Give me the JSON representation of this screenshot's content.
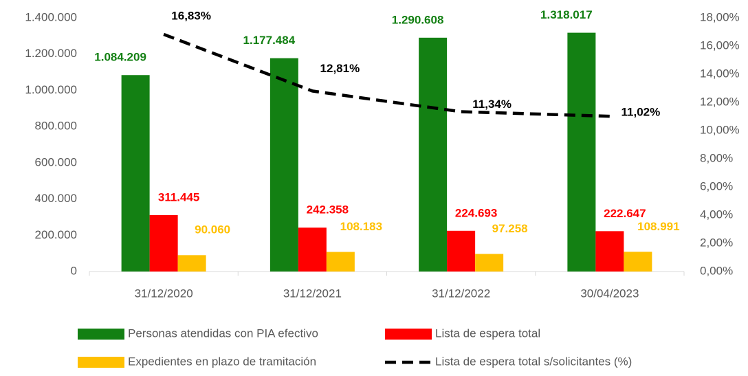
{
  "chart_data": {
    "type": "bar",
    "categories": [
      "31/12/2020",
      "31/12/2021",
      "31/12/2022",
      "30/04/2023"
    ],
    "series": [
      {
        "name": "Personas atendidas con PIA efectivo",
        "color": "#138013",
        "values": [
          1084209,
          1177484,
          1290608,
          1318017
        ],
        "value_labels": [
          "1.084.209",
          "1.177.484",
          "1.290.608",
          "1.318.017"
        ]
      },
      {
        "name": "Lista de espera total",
        "color": "#ff0000",
        "values": [
          311445,
          242358,
          224693,
          222647
        ],
        "value_labels": [
          "311.445",
          "242.358",
          "224.693",
          "222.647"
        ]
      },
      {
        "name": "Expedientes en plazo de tramitación",
        "color": "#ffc000",
        "values": [
          90060,
          108183,
          97258,
          108991
        ],
        "value_labels": [
          "90.060",
          "108.183",
          "97.258",
          "108.991"
        ]
      },
      {
        "name": "Lista de espera total s/solicitantes (%)",
        "type": "line",
        "axis": "y2",
        "color": "#000000",
        "values": [
          16.83,
          12.81,
          11.34,
          11.02
        ],
        "value_labels": [
          "16,83%",
          "12,81%",
          "11,34%",
          "11,02%"
        ]
      }
    ],
    "ylim": [
      0,
      1400000
    ],
    "yticks": [
      0,
      {
        "value": 200000,
        "label": "200.000"
      },
      {
        "value": 400000,
        "label": "400.000"
      },
      {
        "value": 600000,
        "label": "600.000"
      },
      {
        "value": 800000,
        "label": "800.000"
      },
      {
        "value": 1000000,
        "label": "1.000.000"
      },
      {
        "value": 1200000,
        "label": "1.200.000"
      },
      {
        "value": 1400000,
        "label": "1.400.000"
      }
    ],
    "y2lim": [
      0,
      18
    ],
    "y2ticks": [
      {
        "value": 0,
        "label": "0,00%"
      },
      {
        "value": 2,
        "label": "2,00%"
      },
      {
        "value": 4,
        "label": "4,00%"
      },
      {
        "value": 6,
        "label": "6,00%"
      },
      {
        "value": 8,
        "label": "8,00%"
      },
      {
        "value": 10,
        "label": "10,00%"
      },
      {
        "value": 12,
        "label": "12,00%"
      },
      {
        "value": 14,
        "label": "14,00%"
      },
      {
        "value": 16,
        "label": "16,00%"
      },
      {
        "value": 18,
        "label": "18,00%"
      }
    ],
    "grid": false
  }
}
